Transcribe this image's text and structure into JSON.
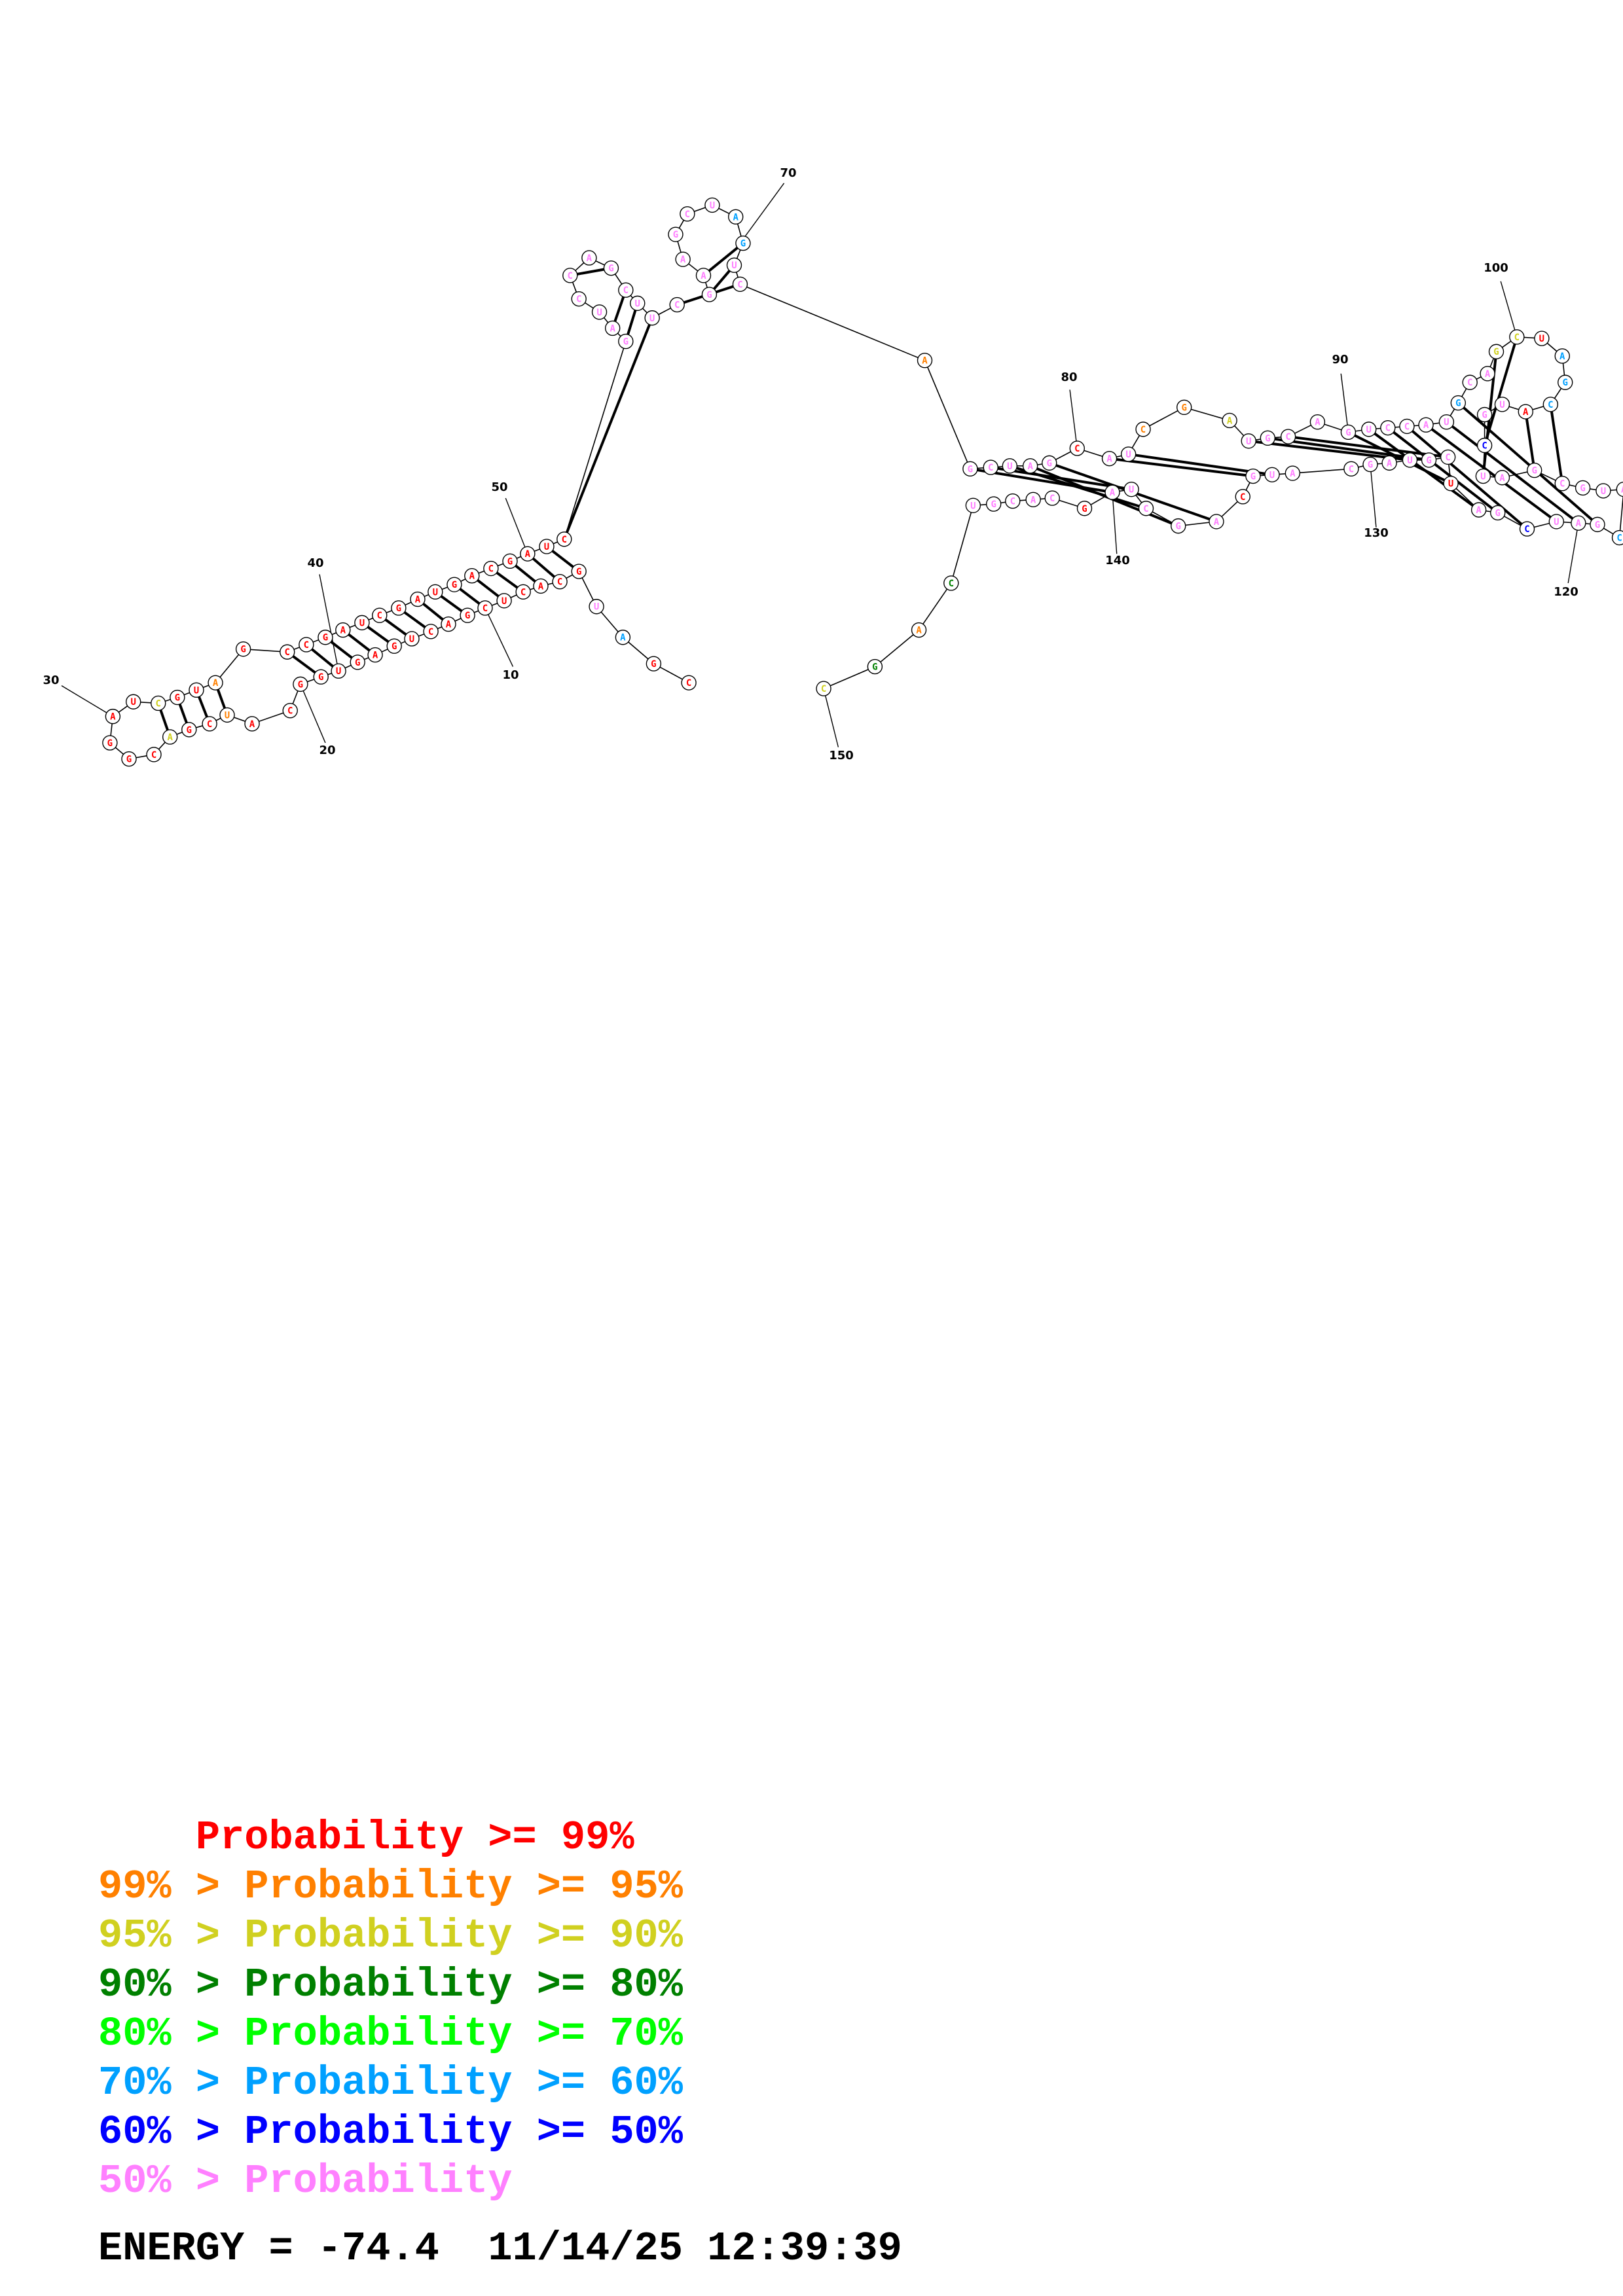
{
  "structure": {
    "pos_labels": [
      "10",
      "20",
      "30",
      "40",
      "50",
      "70",
      "80",
      "90",
      "100",
      "120",
      "130",
      "140",
      "150"
    ]
  },
  "legend": [
    {
      "prefix": "    ",
      "text": "Probability >= 99%",
      "color": "#ff0000"
    },
    {
      "prefix": "99% > ",
      "text": "Probability >= 95%",
      "color": "#ff8000"
    },
    {
      "prefix": "95% > ",
      "text": "Probability >= 90%",
      "color": "#d0d020"
    },
    {
      "prefix": "90% > ",
      "text": "Probability >= 80%",
      "color": "#008000"
    },
    {
      "prefix": "80% > ",
      "text": "Probability >= 70%",
      "color": "#00ff00"
    },
    {
      "prefix": "70% > ",
      "text": "Probability >= 60%",
      "color": "#00a0ff"
    },
    {
      "prefix": "60% > ",
      "text": "Probability >= 50%",
      "color": "#0000ff"
    },
    {
      "prefix": "50% > ",
      "text": "Probability",
      "color": "#ff80ff"
    }
  ],
  "footer": {
    "energy": "ENERGY = -74.4",
    "timestamp": "11/14/25 12:39:39"
  }
}
